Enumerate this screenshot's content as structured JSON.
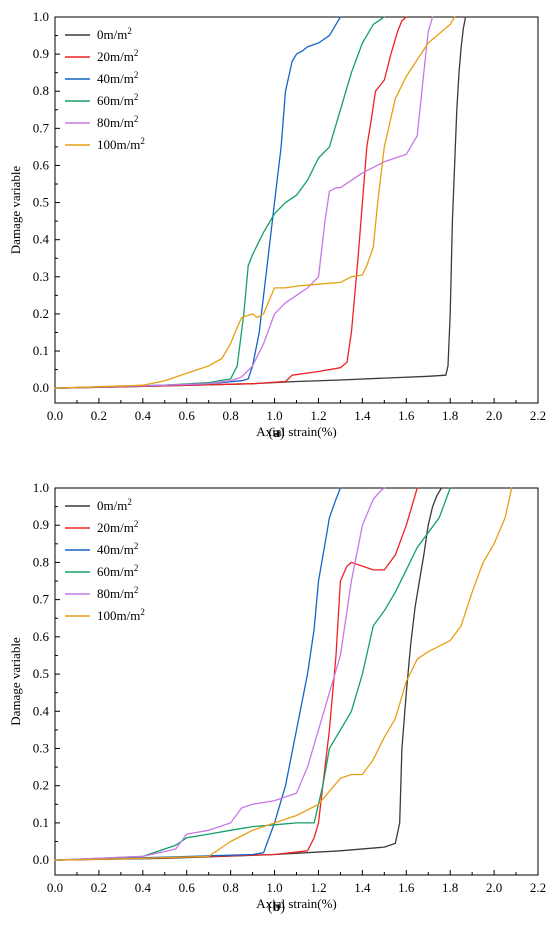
{
  "colors": {
    "0m/m2": "#3a3a3a",
    "20m/m2": "#ee2222",
    "40m/m2": "#1464c8",
    "60m/m2": "#14a064",
    "80m/m2": "#c878e6",
    "100m/m2": "#e6a014"
  },
  "chart_data": [
    {
      "type": "line",
      "panel_label": "(a)",
      "panel_letter": "a",
      "xlabel": "Axial strain(%)",
      "ylabel": "Damage variable",
      "xlim": [
        0.0,
        2.2
      ],
      "ylim": [
        -0.04,
        1.0
      ],
      "x_ticks": [
        "0.0",
        "0.2",
        "0.4",
        "0.6",
        "0.8",
        "1.0",
        "1.2",
        "1.4",
        "1.6",
        "1.8",
        "2.0",
        "2.2"
      ],
      "y_ticks": [
        "0.0",
        "0.1",
        "0.2",
        "0.3",
        "0.4",
        "0.5",
        "0.6",
        "0.7",
        "0.8",
        "0.9",
        "1.0"
      ],
      "grid": false,
      "legend_position": "top-left",
      "series": [
        {
          "name": "0m/m",
          "sup": "2",
          "color_key": "0m/m2",
          "x": [
            0,
            0.5,
            0.9,
            1.1,
            1.3,
            1.5,
            1.7,
            1.78,
            1.79,
            1.8,
            1.81,
            1.82,
            1.83,
            1.84,
            1.85,
            1.86,
            1.87
          ],
          "y": [
            0,
            0.006,
            0.012,
            0.018,
            0.022,
            0.027,
            0.032,
            0.035,
            0.06,
            0.2,
            0.45,
            0.6,
            0.75,
            0.85,
            0.92,
            0.97,
            1.0
          ]
        },
        {
          "name": "20m/m",
          "sup": "2",
          "color_key": "20m/m2",
          "x": [
            0,
            0.5,
            0.9,
            1.05,
            1.08,
            1.2,
            1.3,
            1.33,
            1.35,
            1.38,
            1.4,
            1.42,
            1.44,
            1.46,
            1.5,
            1.53,
            1.56,
            1.58,
            1.6
          ],
          "y": [
            0,
            0.006,
            0.012,
            0.018,
            0.035,
            0.045,
            0.055,
            0.07,
            0.15,
            0.35,
            0.5,
            0.65,
            0.72,
            0.8,
            0.83,
            0.9,
            0.96,
            0.99,
            1.0
          ]
        },
        {
          "name": "40m/m",
          "sup": "2",
          "color_key": "40m/m2",
          "x": [
            0,
            0.5,
            0.7,
            0.85,
            0.88,
            0.9,
            0.93,
            0.96,
            1.0,
            1.03,
            1.05,
            1.08,
            1.1,
            1.13,
            1.15,
            1.2,
            1.25,
            1.28,
            1.3
          ],
          "y": [
            0,
            0.008,
            0.012,
            0.02,
            0.025,
            0.06,
            0.15,
            0.3,
            0.5,
            0.65,
            0.8,
            0.88,
            0.9,
            0.91,
            0.92,
            0.93,
            0.95,
            0.98,
            1.0
          ]
        },
        {
          "name": "60m/m",
          "sup": "2",
          "color_key": "60m/m2",
          "x": [
            0,
            0.5,
            0.7,
            0.8,
            0.83,
            0.86,
            0.88,
            0.9,
            0.95,
            1.0,
            1.05,
            1.1,
            1.15,
            1.2,
            1.25,
            1.3,
            1.35,
            1.4,
            1.45,
            1.5
          ],
          "y": [
            0,
            0.008,
            0.015,
            0.025,
            0.06,
            0.2,
            0.33,
            0.36,
            0.42,
            0.47,
            0.5,
            0.52,
            0.56,
            0.62,
            0.65,
            0.75,
            0.85,
            0.93,
            0.98,
            1.0
          ]
        },
        {
          "name": "80m/m",
          "sup": "2",
          "color_key": "80m/m2",
          "x": [
            0,
            0.5,
            0.7,
            0.8,
            0.85,
            0.9,
            0.95,
            1.0,
            1.05,
            1.1,
            1.15,
            1.2,
            1.23,
            1.25,
            1.28,
            1.3,
            1.4,
            1.5,
            1.6,
            1.65,
            1.68,
            1.7,
            1.72
          ],
          "y": [
            0,
            0.008,
            0.012,
            0.02,
            0.03,
            0.06,
            0.12,
            0.2,
            0.23,
            0.25,
            0.27,
            0.3,
            0.45,
            0.53,
            0.54,
            0.54,
            0.58,
            0.61,
            0.63,
            0.68,
            0.85,
            0.96,
            1.0
          ]
        },
        {
          "name": "100m/m",
          "sup": "2",
          "color_key": "100m/m2",
          "x": [
            0,
            0.4,
            0.5,
            0.6,
            0.7,
            0.76,
            0.8,
            0.82,
            0.85,
            0.9,
            0.92,
            0.95,
            1.0,
            1.05,
            1.1,
            1.2,
            1.3,
            1.35,
            1.4,
            1.42,
            1.45,
            1.47,
            1.5,
            1.55,
            1.6,
            1.7,
            1.8,
            1.82
          ],
          "y": [
            0,
            0.008,
            0.02,
            0.04,
            0.06,
            0.08,
            0.12,
            0.15,
            0.19,
            0.2,
            0.19,
            0.2,
            0.27,
            0.27,
            0.275,
            0.28,
            0.285,
            0.3,
            0.305,
            0.33,
            0.38,
            0.5,
            0.65,
            0.78,
            0.84,
            0.93,
            0.98,
            1.0
          ]
        }
      ]
    },
    {
      "type": "line",
      "panel_label": "(b)",
      "panel_letter": "b",
      "xlabel": "Axial strain(%)",
      "ylabel": "Damage variable",
      "xlim": [
        0.0,
        2.2
      ],
      "ylim": [
        -0.04,
        1.0
      ],
      "x_ticks": [
        "0.0",
        "0.2",
        "0.4",
        "0.6",
        "0.8",
        "1.0",
        "1.2",
        "1.4",
        "1.6",
        "1.8",
        "2.0",
        "2.2"
      ],
      "y_ticks": [
        "0.0",
        "0.1",
        "0.2",
        "0.3",
        "0.4",
        "0.5",
        "0.6",
        "0.7",
        "0.8",
        "0.9",
        "1.0"
      ],
      "grid": false,
      "legend_position": "top-left",
      "series": [
        {
          "name": "0m/m",
          "sup": "2",
          "color_key": "0m/m2",
          "x": [
            0,
            0.5,
            1.0,
            1.3,
            1.5,
            1.55,
            1.57,
            1.58,
            1.6,
            1.62,
            1.64,
            1.66,
            1.68,
            1.7,
            1.72,
            1.74,
            1.76
          ],
          "y": [
            0,
            0.005,
            0.015,
            0.025,
            0.035,
            0.045,
            0.1,
            0.3,
            0.45,
            0.58,
            0.68,
            0.75,
            0.82,
            0.9,
            0.95,
            0.98,
            1.0
          ]
        },
        {
          "name": "20m/m",
          "sup": "2",
          "color_key": "20m/m2",
          "x": [
            0,
            0.5,
            1.0,
            1.15,
            1.18,
            1.2,
            1.22,
            1.25,
            1.28,
            1.3,
            1.33,
            1.35,
            1.4,
            1.45,
            1.5,
            1.55,
            1.6,
            1.63,
            1.65
          ],
          "y": [
            0,
            0.006,
            0.015,
            0.025,
            0.06,
            0.1,
            0.2,
            0.35,
            0.55,
            0.75,
            0.79,
            0.8,
            0.79,
            0.78,
            0.78,
            0.82,
            0.9,
            0.96,
            1.0
          ]
        },
        {
          "name": "40m/m",
          "sup": "2",
          "color_key": "40m/m2",
          "x": [
            0,
            0.5,
            0.9,
            0.95,
            1.0,
            1.05,
            1.1,
            1.15,
            1.18,
            1.2,
            1.23,
            1.25,
            1.28,
            1.3
          ],
          "y": [
            0,
            0.008,
            0.015,
            0.02,
            0.1,
            0.2,
            0.35,
            0.5,
            0.62,
            0.75,
            0.85,
            0.92,
            0.97,
            1.0
          ]
        },
        {
          "name": "60m/m",
          "sup": "2",
          "color_key": "60m/m2",
          "x": [
            0,
            0.4,
            0.55,
            0.6,
            0.7,
            0.8,
            0.9,
            1.0,
            1.1,
            1.18,
            1.22,
            1.25,
            1.3,
            1.35,
            1.4,
            1.45,
            1.5,
            1.55,
            1.6,
            1.65,
            1.7,
            1.75,
            1.8
          ],
          "y": [
            0,
            0.01,
            0.04,
            0.06,
            0.07,
            0.08,
            0.09,
            0.095,
            0.1,
            0.1,
            0.2,
            0.3,
            0.35,
            0.4,
            0.5,
            0.63,
            0.67,
            0.72,
            0.78,
            0.84,
            0.88,
            0.92,
            1.0
          ]
        },
        {
          "name": "80m/m",
          "sup": "2",
          "color_key": "80m/m2",
          "x": [
            0,
            0.4,
            0.55,
            0.6,
            0.7,
            0.8,
            0.85,
            0.9,
            1.0,
            1.05,
            1.1,
            1.15,
            1.2,
            1.25,
            1.3,
            1.35,
            1.4,
            1.45,
            1.48,
            1.5
          ],
          "y": [
            0,
            0.01,
            0.03,
            0.07,
            0.08,
            0.1,
            0.14,
            0.15,
            0.16,
            0.17,
            0.18,
            0.25,
            0.35,
            0.45,
            0.55,
            0.75,
            0.9,
            0.97,
            0.99,
            1.0
          ]
        },
        {
          "name": "100m/m",
          "sup": "2",
          "color_key": "100m/m2",
          "x": [
            0,
            0.4,
            0.7,
            0.8,
            0.9,
            1.0,
            1.1,
            1.2,
            1.3,
            1.35,
            1.4,
            1.45,
            1.5,
            1.55,
            1.6,
            1.65,
            1.7,
            1.8,
            1.85,
            1.9,
            1.95,
            2.0,
            2.05,
            2.08
          ],
          "y": [
            0,
            0.005,
            0.01,
            0.05,
            0.08,
            0.1,
            0.12,
            0.15,
            0.22,
            0.23,
            0.23,
            0.27,
            0.33,
            0.38,
            0.48,
            0.54,
            0.56,
            0.59,
            0.63,
            0.72,
            0.8,
            0.85,
            0.92,
            1.0
          ]
        }
      ]
    }
  ]
}
